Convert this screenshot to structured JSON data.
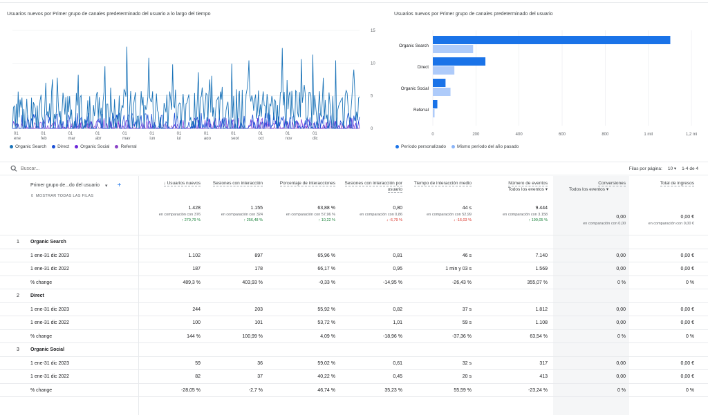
{
  "line_chart": {
    "title": "Usuarios nuevos por Primer grupo de canales predeterminado del usuario a lo largo del tiempo",
    "y_ticks": [
      "15",
      "10",
      "5",
      "0"
    ],
    "x_ticks": [
      {
        "d": "01",
        "m": "ene"
      },
      {
        "d": "01",
        "m": "feb"
      },
      {
        "d": "01",
        "m": "mar"
      },
      {
        "d": "01",
        "m": "abr"
      },
      {
        "d": "01",
        "m": "may"
      },
      {
        "d": "01",
        "m": "jun"
      },
      {
        "d": "01",
        "m": "jul"
      },
      {
        "d": "01",
        "m": "ago"
      },
      {
        "d": "01",
        "m": "sept"
      },
      {
        "d": "01",
        "m": "oct"
      },
      {
        "d": "01",
        "m": "nov"
      },
      {
        "d": "01",
        "m": "dic"
      }
    ],
    "legend": [
      {
        "label": "Organic Search",
        "color": "#1a73b8"
      },
      {
        "label": "Direct",
        "color": "#1a4fd6"
      },
      {
        "label": "Organic Social",
        "color": "#6d28d9"
      },
      {
        "label": "Referral",
        "color": "#8b45c7"
      }
    ]
  },
  "bar_chart": {
    "title": "Usuarios nuevos por Primer grupo de canales predeterminado del usuario",
    "legend": [
      {
        "label": "Período personalizado",
        "color": "#1a73e8"
      },
      {
        "label": "Mismo período del año pasado",
        "color": "#8ab4f8"
      }
    ]
  },
  "chart_data": [
    {
      "type": "line",
      "title": "Usuarios nuevos por Primer grupo de canales predeterminado del usuario a lo largo del tiempo",
      "x_range": [
        "2023-01-01",
        "2023-12-31"
      ],
      "ylim": [
        0,
        15
      ],
      "series_names": [
        "Organic Search",
        "Direct",
        "Organic Social",
        "Referral"
      ]
    },
    {
      "type": "bar",
      "orientation": "horizontal",
      "title": "Usuarios nuevos por Primer grupo de canales predeterminado del usuario",
      "categories": [
        "Organic Search",
        "Direct",
        "Organic Social",
        "Referral"
      ],
      "series": [
        {
          "name": "Período personalizado",
          "values": [
            1102,
            244,
            59,
            21
          ]
        },
        {
          "name": "Mismo período del año pasado",
          "values": [
            187,
            100,
            82,
            8
          ]
        }
      ],
      "xlim": [
        0,
        1200
      ],
      "x_ticks": [
        "0",
        "200",
        "400",
        "600",
        "800",
        "1 mil",
        "1,2 mi"
      ]
    }
  ],
  "search": {
    "placeholder": "Buscar..."
  },
  "pager": {
    "rows_label": "Filas por página:",
    "rows_value": "10",
    "range": "1-4 de 4"
  },
  "table": {
    "dimension_header": "Primer grupo de...do del usuario",
    "show_all_rows": "MOSTRAR TODAS LAS FILAS",
    "columns": [
      {
        "label": "↓ Usuarios nuevos",
        "total": "1.428",
        "cmp": "en comparación con 376",
        "pct": "↑ 279,79 %",
        "dir": "up"
      },
      {
        "label": "Sesiones con interacción",
        "total": "1.155",
        "cmp": "en comparación con 324",
        "pct": "↑ 256,48 %",
        "dir": "up"
      },
      {
        "label": "Porcentaje de interacciones",
        "total": "63,88 %",
        "cmp": "en comparación con 57,96 %",
        "pct": "↑ 10,22 %",
        "dir": "up"
      },
      {
        "label": "Sesiones con interacción por usuario",
        "total": "0,80",
        "cmp": "en comparación con 0,86",
        "pct": "↓ -6,79 %",
        "dir": "down"
      },
      {
        "label": "Tiempo de interacción medio",
        "total": "44 s",
        "cmp": "en comparación con 52,99",
        "pct": "↓ -16,03 %",
        "dir": "down"
      },
      {
        "label": "Número de eventos",
        "sub": "Todos los eventos ▾",
        "total": "9.444",
        "cmp": "en comparación con 3.158",
        "pct": "↑ 199,05 %",
        "dir": "up"
      },
      {
        "label": "Conversiones",
        "sub": "Todos los eventos ▾",
        "total": "0,00",
        "cmp": "en comparación con 0,00",
        "pct": "",
        "dir": "none"
      },
      {
        "label": "Total de ingresos",
        "total": "0,00 €",
        "cmp": "en comparación con 0,00 €",
        "pct": "",
        "dir": "none"
      }
    ],
    "rows": [
      {
        "type": "group",
        "idx": "1",
        "label": "Organic Search",
        "cells": []
      },
      {
        "type": "data",
        "idx": "",
        "label": "1 ene-31 dic 2023",
        "cells": [
          "1.102",
          "897",
          "65,96 %",
          "0,81",
          "46 s",
          "7.140",
          "0,00",
          "0,00 €"
        ]
      },
      {
        "type": "data",
        "idx": "",
        "label": "1 ene-31 dic 2022",
        "cells": [
          "187",
          "178",
          "66,17 %",
          "0,95",
          "1 min y 03 s",
          "1.569",
          "0,00",
          "0,00 €"
        ]
      },
      {
        "type": "data",
        "idx": "",
        "label": "% change",
        "cells": [
          "489,3 %",
          "403,93 %",
          "-0,33 %",
          "-14,95 %",
          "-26,43 %",
          "355,07 %",
          "0 %",
          "0 %"
        ]
      },
      {
        "type": "group",
        "idx": "2",
        "label": "Direct",
        "cells": []
      },
      {
        "type": "data",
        "idx": "",
        "label": "1 ene-31 dic 2023",
        "cells": [
          "244",
          "203",
          "55,92 %",
          "0,82",
          "37 s",
          "1.812",
          "0,00",
          "0,00 €"
        ]
      },
      {
        "type": "data",
        "idx": "",
        "label": "1 ene-31 dic 2022",
        "cells": [
          "100",
          "101",
          "53,72 %",
          "1,01",
          "59 s",
          "1.108",
          "0,00",
          "0,00 €"
        ]
      },
      {
        "type": "data",
        "idx": "",
        "label": "% change",
        "cells": [
          "144 %",
          "100,99 %",
          "4,09 %",
          "-18,96 %",
          "-37,36 %",
          "63,54 %",
          "0 %",
          "0 %"
        ]
      },
      {
        "type": "group",
        "idx": "3",
        "label": "Organic Social",
        "cells": []
      },
      {
        "type": "data",
        "idx": "",
        "label": "1 ene-31 dic 2023",
        "cells": [
          "59",
          "36",
          "59,02 %",
          "0,61",
          "32 s",
          "317",
          "0,00",
          "0,00 €"
        ]
      },
      {
        "type": "data",
        "idx": "",
        "label": "1 ene-31 dic 2022",
        "cells": [
          "82",
          "37",
          "40,22 %",
          "0,45",
          "20 s",
          "413",
          "0,00",
          "0,00 €"
        ]
      },
      {
        "type": "data",
        "idx": "",
        "label": "% change",
        "cells": [
          "-28,05 %",
          "-2,7 %",
          "46,74 %",
          "35,23 %",
          "55,59 %",
          "-23,24 %",
          "0 %",
          "0 %"
        ]
      }
    ]
  }
}
